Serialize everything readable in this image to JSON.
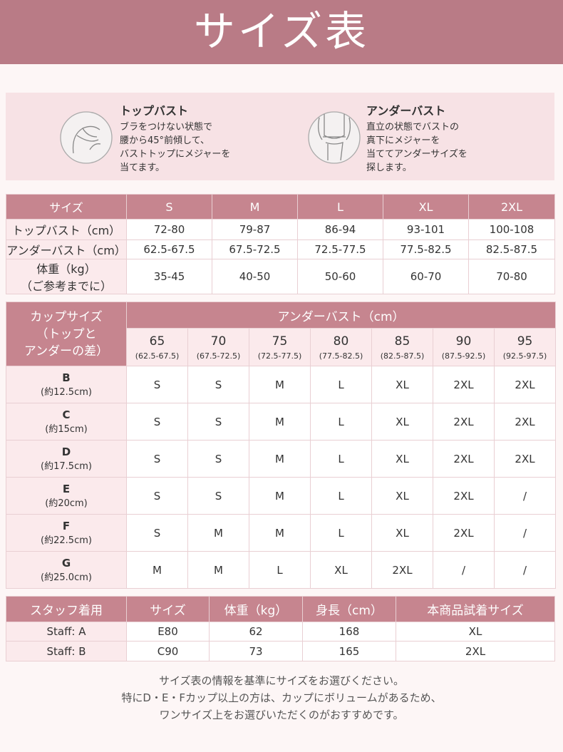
{
  "header": {
    "title": "サイズ表"
  },
  "measure": [
    {
      "title": "トップバスト",
      "lines": [
        "ブラをつけない状態で",
        "腰から45°前傾して、",
        "バストトップにメジャーを",
        "当てます。"
      ]
    },
    {
      "title": "アンダーバスト",
      "lines": [
        "直立の状態でバストの",
        "真下にメジャーを",
        "当ててアンダーサイズを",
        "探します。"
      ]
    }
  ],
  "size_table": {
    "header": [
      "サイズ",
      "S",
      "M",
      "L",
      "XL",
      "2XL"
    ],
    "rows": [
      {
        "label": [
          "トップバスト（cm）"
        ],
        "cells": [
          "72-80",
          "79-87",
          "86-94",
          "93-101",
          "100-108"
        ]
      },
      {
        "label": [
          "アンダーバスト（cm）"
        ],
        "cells": [
          "62.5-67.5",
          "67.5-72.5",
          "72.5-77.5",
          "77.5-82.5",
          "82.5-87.5"
        ]
      },
      {
        "label": [
          "体重（kg）",
          "（ご参考までに）"
        ],
        "cells": [
          "35-45",
          "40-50",
          "50-60",
          "60-70",
          "70-80"
        ]
      }
    ]
  },
  "cup_table": {
    "corner": [
      "カップサイズ",
      "（トップと",
      "アンダーの差）"
    ],
    "group": "アンダーバスト（cm）",
    "columns": [
      {
        "band": "65",
        "range": "(62.5-67.5)"
      },
      {
        "band": "70",
        "range": "(67.5-72.5)"
      },
      {
        "band": "75",
        "range": "(72.5-77.5)"
      },
      {
        "band": "80",
        "range": "(77.5-82.5)"
      },
      {
        "band": "85",
        "range": "(82.5-87.5)"
      },
      {
        "band": "90",
        "range": "(87.5-92.5)"
      },
      {
        "band": "95",
        "range": "(92.5-97.5)"
      }
    ],
    "rows": [
      {
        "cup": "B",
        "diff": "(約12.5cm)",
        "cells": [
          "S",
          "S",
          "M",
          "L",
          "XL",
          "2XL",
          "2XL"
        ]
      },
      {
        "cup": "C",
        "diff": "(約15cm)",
        "cells": [
          "S",
          "S",
          "M",
          "L",
          "XL",
          "2XL",
          "2XL"
        ]
      },
      {
        "cup": "D",
        "diff": "(約17.5cm)",
        "cells": [
          "S",
          "S",
          "M",
          "L",
          "XL",
          "2XL",
          "2XL"
        ]
      },
      {
        "cup": "E",
        "diff": "(約20cm)",
        "cells": [
          "S",
          "S",
          "M",
          "L",
          "XL",
          "2XL",
          "/"
        ]
      },
      {
        "cup": "F",
        "diff": "(約22.5cm)",
        "cells": [
          "S",
          "M",
          "M",
          "L",
          "XL",
          "2XL",
          "/"
        ]
      },
      {
        "cup": "G",
        "diff": "(約25.0cm)",
        "cells": [
          "M",
          "M",
          "L",
          "XL",
          "2XL",
          "/",
          "/"
        ]
      }
    ]
  },
  "staff_table": {
    "header": [
      "スタッフ着用",
      "サイズ",
      "体重（kg）",
      "身長（cm）",
      "本商品試着サイズ"
    ],
    "rows": [
      [
        "Staff: A",
        "E80",
        "62",
        "168",
        "XL"
      ],
      [
        "Staff: B",
        "C90",
        "73",
        "165",
        "2XL"
      ]
    ]
  },
  "footer": {
    "lines": [
      "サイズ表の情報を基準にサイズをお選びください。",
      "特にD・E・Fカップ以上の方は、カップにボリュームがあるため、",
      "ワンサイズ上をお選びいただくのがおすすめです。"
    ]
  }
}
